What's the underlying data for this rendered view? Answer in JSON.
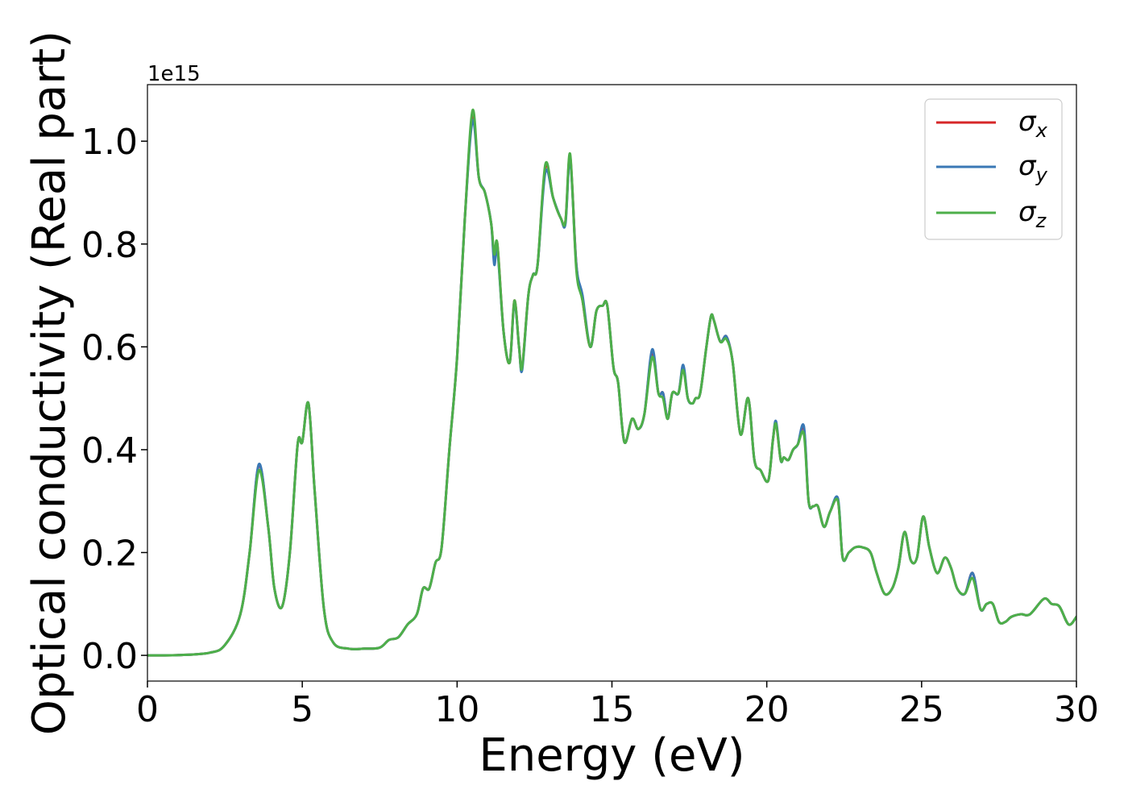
{
  "chart_data": {
    "type": "line",
    "xlabel": "Energy (eV)",
    "ylabel": "Optical conductivity (Real part)",
    "offset_text": "1e15",
    "xlim": [
      0,
      30
    ],
    "ylim": [
      -0.05,
      1.11
    ],
    "x_ticks": [
      0,
      5,
      10,
      15,
      20,
      25,
      30
    ],
    "x_tick_labels": [
      "0",
      "5",
      "10",
      "15",
      "20",
      "25",
      "30"
    ],
    "y_ticks": [
      0.0,
      0.2,
      0.4,
      0.6,
      0.8,
      1.0
    ],
    "y_tick_labels": [
      "0.0",
      "0.2",
      "0.4",
      "0.6",
      "0.8",
      "1.0"
    ],
    "grid": false,
    "legend_position": "top-right",
    "series": [
      {
        "name": "σx",
        "symbol": "σ",
        "subscript": "x",
        "color": "#d62728",
        "x": [
          0,
          1,
          2,
          2.5,
          3,
          3.3,
          3.6,
          3.9,
          4.1,
          4.35,
          4.6,
          4.85,
          5.0,
          5.2,
          5.4,
          5.7,
          6.0,
          6.5,
          7.0,
          7.5,
          7.8,
          8.1,
          8.4,
          8.7,
          8.9,
          9.1,
          9.3,
          9.5,
          9.75,
          10.0,
          10.25,
          10.5,
          10.7,
          10.9,
          11.1,
          11.2,
          11.3,
          11.5,
          11.7,
          11.85,
          12.0,
          12.1,
          12.3,
          12.45,
          12.6,
          12.85,
          13.1,
          13.35,
          13.5,
          13.65,
          13.85,
          14.05,
          14.3,
          14.5,
          14.7,
          14.85,
          15.05,
          15.2,
          15.4,
          15.65,
          15.85,
          16.05,
          16.3,
          16.5,
          16.65,
          16.8,
          16.95,
          17.15,
          17.3,
          17.45,
          17.6,
          17.7,
          17.85,
          18.05,
          18.2,
          18.3,
          18.5,
          18.7,
          18.9,
          19.15,
          19.4,
          19.6,
          19.8,
          20.05,
          20.2,
          20.3,
          20.45,
          20.55,
          20.7,
          20.85,
          21.0,
          21.2,
          21.35,
          21.5,
          21.65,
          21.85,
          22.05,
          22.3,
          22.45,
          22.65,
          22.85,
          23.1,
          23.35,
          23.55,
          23.8,
          24.05,
          24.25,
          24.45,
          24.65,
          24.85,
          25.05,
          25.25,
          25.5,
          25.75,
          25.95,
          26.15,
          26.4,
          26.65,
          26.9,
          27.1,
          27.3,
          27.5,
          27.7,
          27.9,
          28.2,
          28.5,
          28.95,
          29.2,
          29.45,
          29.75,
          30.0
        ],
        "y": [
          0,
          0.0005,
          0.005,
          0.02,
          0.08,
          0.2,
          0.37,
          0.25,
          0.13,
          0.095,
          0.2,
          0.41,
          0.415,
          0.49,
          0.32,
          0.09,
          0.025,
          0.013,
          0.013,
          0.015,
          0.03,
          0.035,
          0.06,
          0.08,
          0.13,
          0.13,
          0.18,
          0.21,
          0.4,
          0.58,
          0.85,
          1.05,
          0.93,
          0.9,
          0.84,
          0.77,
          0.8,
          0.63,
          0.57,
          0.69,
          0.6,
          0.56,
          0.7,
          0.74,
          0.76,
          0.95,
          0.89,
          0.85,
          0.845,
          0.97,
          0.76,
          0.69,
          0.6,
          0.67,
          0.68,
          0.68,
          0.56,
          0.53,
          0.415,
          0.46,
          0.44,
          0.47,
          0.59,
          0.51,
          0.51,
          0.46,
          0.51,
          0.51,
          0.56,
          0.5,
          0.49,
          0.5,
          0.51,
          0.6,
          0.66,
          0.65,
          0.61,
          0.62,
          0.57,
          0.43,
          0.5,
          0.38,
          0.36,
          0.34,
          0.42,
          0.45,
          0.38,
          0.385,
          0.38,
          0.4,
          0.41,
          0.44,
          0.3,
          0.29,
          0.29,
          0.25,
          0.28,
          0.3,
          0.19,
          0.2,
          0.21,
          0.21,
          0.2,
          0.16,
          0.12,
          0.13,
          0.17,
          0.24,
          0.185,
          0.19,
          0.27,
          0.21,
          0.16,
          0.19,
          0.17,
          0.13,
          0.12,
          0.16,
          0.09,
          0.1,
          0.1,
          0.065,
          0.065,
          0.075,
          0.08,
          0.08,
          0.11,
          0.1,
          0.095,
          0.06,
          0.075
        ]
      },
      {
        "name": "σy",
        "symbol": "σ",
        "subscript": "y",
        "color": "#3a78b5",
        "x": [
          0,
          1,
          2,
          2.5,
          3,
          3.3,
          3.6,
          3.9,
          4.1,
          4.35,
          4.6,
          4.85,
          5.0,
          5.2,
          5.4,
          5.7,
          6.0,
          6.5,
          7.0,
          7.5,
          7.8,
          8.1,
          8.4,
          8.7,
          8.9,
          9.1,
          9.3,
          9.5,
          9.75,
          10.0,
          10.25,
          10.5,
          10.7,
          10.9,
          11.1,
          11.2,
          11.3,
          11.5,
          11.7,
          11.85,
          12.0,
          12.1,
          12.3,
          12.45,
          12.6,
          12.85,
          13.1,
          13.35,
          13.5,
          13.65,
          13.85,
          14.05,
          14.3,
          14.5,
          14.7,
          14.85,
          15.05,
          15.2,
          15.4,
          15.65,
          15.85,
          16.05,
          16.3,
          16.5,
          16.65,
          16.8,
          16.95,
          17.15,
          17.3,
          17.45,
          17.6,
          17.7,
          17.85,
          18.05,
          18.2,
          18.3,
          18.5,
          18.7,
          18.9,
          19.15,
          19.4,
          19.6,
          19.8,
          20.05,
          20.2,
          20.3,
          20.45,
          20.55,
          20.7,
          20.85,
          21.0,
          21.2,
          21.35,
          21.5,
          21.65,
          21.85,
          22.05,
          22.3,
          22.45,
          22.65,
          22.85,
          23.1,
          23.35,
          23.55,
          23.8,
          24.05,
          24.25,
          24.45,
          24.65,
          24.85,
          25.05,
          25.25,
          25.5,
          25.75,
          25.95,
          26.15,
          26.4,
          26.65,
          26.9,
          27.1,
          27.3,
          27.5,
          27.7,
          27.9,
          28.2,
          28.5,
          28.95,
          29.2,
          29.45,
          29.75,
          30.0
        ],
        "y": [
          0,
          0.0005,
          0.005,
          0.02,
          0.08,
          0.2,
          0.372,
          0.25,
          0.13,
          0.095,
          0.2,
          0.41,
          0.415,
          0.49,
          0.32,
          0.09,
          0.025,
          0.013,
          0.013,
          0.015,
          0.03,
          0.035,
          0.06,
          0.08,
          0.13,
          0.13,
          0.18,
          0.21,
          0.4,
          0.58,
          0.85,
          1.04,
          0.93,
          0.9,
          0.84,
          0.76,
          0.79,
          0.63,
          0.57,
          0.685,
          0.6,
          0.555,
          0.7,
          0.74,
          0.76,
          0.94,
          0.89,
          0.85,
          0.84,
          0.965,
          0.76,
          0.7,
          0.6,
          0.67,
          0.68,
          0.68,
          0.56,
          0.53,
          0.415,
          0.46,
          0.44,
          0.47,
          0.595,
          0.51,
          0.51,
          0.46,
          0.51,
          0.51,
          0.565,
          0.5,
          0.49,
          0.5,
          0.51,
          0.6,
          0.66,
          0.65,
          0.61,
          0.62,
          0.57,
          0.43,
          0.5,
          0.38,
          0.36,
          0.34,
          0.42,
          0.455,
          0.38,
          0.385,
          0.38,
          0.4,
          0.41,
          0.445,
          0.3,
          0.29,
          0.29,
          0.25,
          0.28,
          0.305,
          0.19,
          0.2,
          0.21,
          0.21,
          0.2,
          0.16,
          0.12,
          0.13,
          0.17,
          0.24,
          0.185,
          0.19,
          0.27,
          0.21,
          0.16,
          0.19,
          0.17,
          0.13,
          0.12,
          0.16,
          0.09,
          0.1,
          0.1,
          0.065,
          0.065,
          0.075,
          0.08,
          0.08,
          0.11,
          0.1,
          0.095,
          0.06,
          0.075
        ]
      },
      {
        "name": "σz",
        "symbol": "σ",
        "subscript": "z",
        "color": "#4daf4a",
        "x": [
          0,
          1,
          2,
          2.5,
          3,
          3.3,
          3.6,
          3.9,
          4.1,
          4.35,
          4.6,
          4.85,
          5.0,
          5.2,
          5.4,
          5.7,
          6.0,
          6.5,
          7.0,
          7.5,
          7.8,
          8.1,
          8.4,
          8.7,
          8.9,
          9.1,
          9.3,
          9.5,
          9.75,
          10.0,
          10.25,
          10.5,
          10.7,
          10.9,
          11.1,
          11.2,
          11.3,
          11.5,
          11.7,
          11.85,
          12.0,
          12.1,
          12.3,
          12.45,
          12.6,
          12.85,
          13.1,
          13.35,
          13.5,
          13.65,
          13.85,
          14.05,
          14.3,
          14.5,
          14.7,
          14.85,
          15.05,
          15.2,
          15.4,
          15.65,
          15.85,
          16.05,
          16.3,
          16.5,
          16.65,
          16.8,
          16.95,
          17.15,
          17.3,
          17.45,
          17.6,
          17.7,
          17.85,
          18.05,
          18.2,
          18.3,
          18.5,
          18.7,
          18.9,
          19.15,
          19.4,
          19.6,
          19.8,
          20.05,
          20.2,
          20.3,
          20.45,
          20.55,
          20.7,
          20.85,
          21.0,
          21.2,
          21.35,
          21.5,
          21.65,
          21.85,
          22.05,
          22.3,
          22.45,
          22.65,
          22.85,
          23.1,
          23.35,
          23.55,
          23.8,
          24.05,
          24.25,
          24.45,
          24.65,
          24.85,
          25.05,
          25.25,
          25.5,
          25.75,
          25.95,
          26.15,
          26.4,
          26.65,
          26.9,
          27.1,
          27.3,
          27.5,
          27.7,
          27.9,
          28.2,
          28.5,
          28.95,
          29.2,
          29.45,
          29.75,
          30.0
        ],
        "y": [
          0,
          0.0005,
          0.005,
          0.02,
          0.08,
          0.2,
          0.36,
          0.25,
          0.13,
          0.095,
          0.2,
          0.41,
          0.415,
          0.49,
          0.32,
          0.09,
          0.025,
          0.013,
          0.013,
          0.015,
          0.03,
          0.035,
          0.06,
          0.08,
          0.13,
          0.13,
          0.18,
          0.21,
          0.4,
          0.58,
          0.85,
          1.06,
          0.93,
          0.9,
          0.84,
          0.78,
          0.8,
          0.63,
          0.57,
          0.69,
          0.6,
          0.56,
          0.7,
          0.74,
          0.76,
          0.955,
          0.89,
          0.85,
          0.845,
          0.975,
          0.75,
          0.69,
          0.6,
          0.67,
          0.68,
          0.68,
          0.56,
          0.53,
          0.415,
          0.46,
          0.44,
          0.47,
          0.58,
          0.51,
          0.5,
          0.46,
          0.51,
          0.51,
          0.555,
          0.5,
          0.49,
          0.5,
          0.51,
          0.6,
          0.66,
          0.65,
          0.61,
          0.615,
          0.57,
          0.43,
          0.5,
          0.38,
          0.36,
          0.34,
          0.42,
          0.45,
          0.38,
          0.385,
          0.38,
          0.4,
          0.41,
          0.43,
          0.3,
          0.29,
          0.29,
          0.25,
          0.28,
          0.3,
          0.19,
          0.2,
          0.21,
          0.21,
          0.2,
          0.16,
          0.12,
          0.13,
          0.17,
          0.24,
          0.185,
          0.19,
          0.27,
          0.21,
          0.16,
          0.19,
          0.17,
          0.13,
          0.12,
          0.15,
          0.09,
          0.1,
          0.1,
          0.065,
          0.065,
          0.075,
          0.08,
          0.08,
          0.11,
          0.1,
          0.095,
          0.06,
          0.075
        ]
      }
    ]
  }
}
